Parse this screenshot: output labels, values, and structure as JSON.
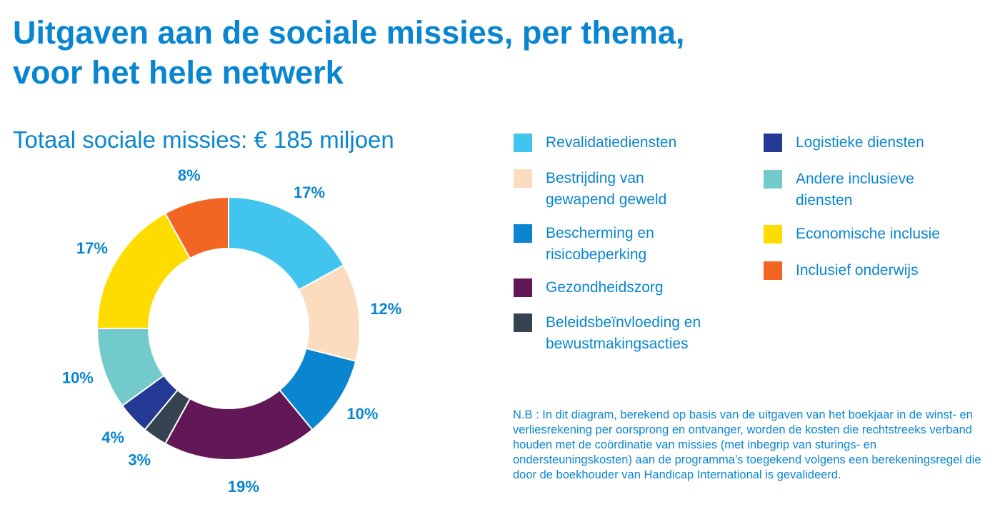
{
  "title_line1": "Uitgaven aan de sociale missies, per thema,",
  "title_line2": "voor het hele netwerk",
  "subtitle": "Totaal sociale missies: € 185 miljoen",
  "note": "N.B : In dit diagram, berekend op basis van de uitgaven van het boekjaar in de winst- en verliesrekening per oorsprong en ontvanger, worden de kosten die rechtstreeks verband houden met de coördinatie van missies (met inbegrip van sturings- en ondersteuningskosten) aan de programma’s toegekend volgens een berekeningsregel die door de boekhouder van Handicap International is gevalideerd.",
  "chart_data": {
    "type": "pie",
    "style": "donut",
    "title": "Totaal sociale missies: € 185 miljoen",
    "legend_position": "right",
    "slices": [
      {
        "label": "Revalidatiediensten",
        "value": 17,
        "display": "17%",
        "color": "#41c4ee"
      },
      {
        "label": "Bestrijding van gewapend geweld",
        "value": 12,
        "display": "12%",
        "color": "#fbdcbf"
      },
      {
        "label": "Bescherming en risicobeperking",
        "value": 10,
        "display": "10%",
        "color": "#0a86d0"
      },
      {
        "label": "Gezondheidszorg",
        "value": 19,
        "display": "19%",
        "color": "#621756"
      },
      {
        "label": "Beleidsbeïnvloeding en bewustmakingsacties",
        "value": 3,
        "display": "3%",
        "color": "#364452"
      },
      {
        "label": "Logistieke diensten",
        "value": 4,
        "display": "4%",
        "color": "#243a94"
      },
      {
        "label": "Andere inclusieve diensten",
        "value": 10,
        "display": "10%",
        "color": "#72cbca"
      },
      {
        "label": "Economische inclusie",
        "value": 17,
        "display": "17%",
        "color": "#ffdc00"
      },
      {
        "label": "Inclusief onderwijs",
        "value": 8,
        "display": "8%",
        "color": "#f36523"
      }
    ]
  }
}
